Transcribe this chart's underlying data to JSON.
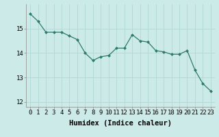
{
  "x": [
    0,
    1,
    2,
    3,
    4,
    5,
    6,
    7,
    8,
    9,
    10,
    11,
    12,
    13,
    14,
    15,
    16,
    17,
    18,
    19,
    20,
    21,
    22,
    23
  ],
  "y": [
    15.6,
    15.3,
    14.85,
    14.85,
    14.85,
    14.7,
    14.55,
    14.0,
    13.7,
    13.85,
    13.9,
    14.2,
    14.2,
    14.75,
    14.5,
    14.45,
    14.1,
    14.05,
    13.95,
    13.95,
    14.1,
    13.3,
    12.75,
    12.45
  ],
  "xlabel": "Humidex (Indice chaleur)",
  "ylim": [
    11.8,
    16.0
  ],
  "xlim": [
    -0.5,
    23.5
  ],
  "yticks": [
    12,
    13,
    14,
    15
  ],
  "xticks": [
    0,
    1,
    2,
    3,
    4,
    5,
    6,
    7,
    8,
    9,
    10,
    11,
    12,
    13,
    14,
    15,
    16,
    17,
    18,
    19,
    20,
    21,
    22,
    23
  ],
  "line_color": "#2d7a6e",
  "marker": "D",
  "marker_size": 2.0,
  "bg_color": "#cceae7",
  "grid_color": "#b0d8d4",
  "tick_label_fontsize": 6.5,
  "xlabel_fontsize": 7.5
}
